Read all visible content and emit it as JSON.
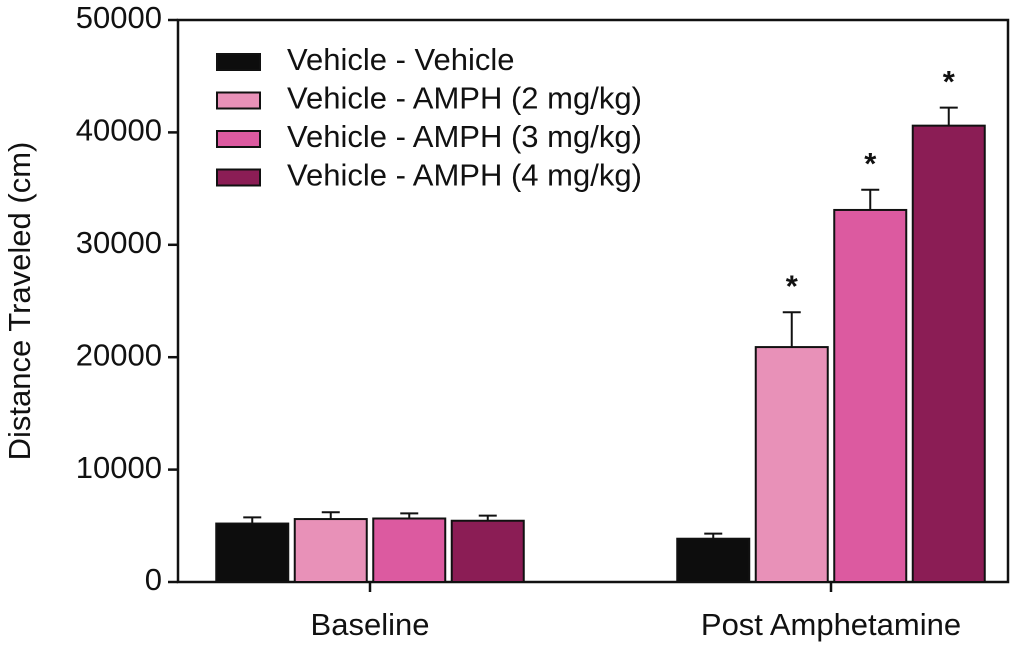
{
  "chart_data": {
    "type": "bar",
    "y_label": "Distance Traveled (cm)",
    "categories": [
      "Baseline",
      "Post Amphetamine"
    ],
    "series": [
      {
        "name": "Vehicle - Vehicle",
        "color": "#0d0d0d",
        "values": [
          5200,
          3850
        ],
        "errors": [
          550,
          450
        ],
        "annotations": [
          null,
          null
        ]
      },
      {
        "name": "Vehicle - AMPH (2 mg/kg)",
        "color": "#e891b8",
        "values": [
          5600,
          20900
        ],
        "errors": [
          600,
          3100
        ],
        "annotations": [
          null,
          "*"
        ]
      },
      {
        "name": "Vehicle - AMPH (3 mg/kg)",
        "color": "#dc5aa0",
        "values": [
          5650,
          33100
        ],
        "errors": [
          450,
          1800
        ],
        "annotations": [
          null,
          "*"
        ]
      },
      {
        "name": "Vehicle - AMPH (4 mg/kg)",
        "color": "#8b1d55",
        "values": [
          5450,
          40600
        ],
        "errors": [
          450,
          1600
        ],
        "annotations": [
          null,
          "*"
        ]
      }
    ],
    "ylim": [
      0,
      50000
    ],
    "yticks": [
      0,
      10000,
      20000,
      30000,
      40000,
      50000
    ],
    "grid": false,
    "legend": "upper-left"
  }
}
